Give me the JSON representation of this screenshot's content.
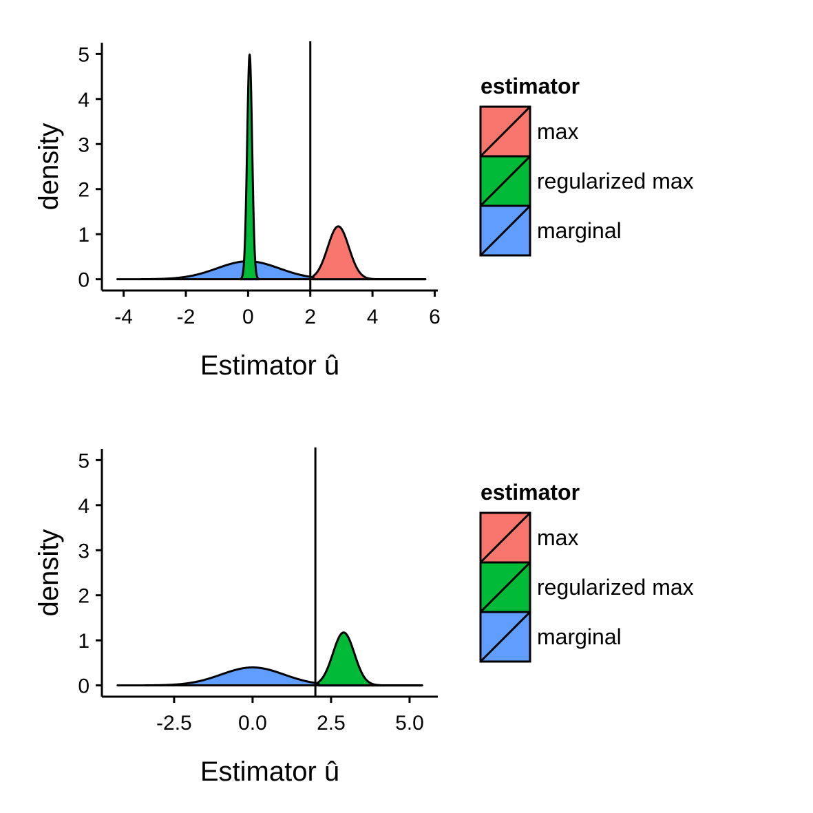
{
  "colors": {
    "max": "#F8766D",
    "regularized max": "#00BA38",
    "marginal": "#619CFF",
    "outline": "#000000"
  },
  "chart_data": [
    {
      "type": "area",
      "xlabel": "Estimator û",
      "ylabel": "density",
      "xlim": [
        -4.7,
        6.1
      ],
      "ylim": [
        -0.25,
        5.25
      ],
      "x_ticks": [
        -4,
        -2,
        0,
        2,
        4,
        6
      ],
      "x_tick_labels": [
        "-4",
        "-2",
        "0",
        "2",
        "4",
        "6"
      ],
      "y_ticks": [
        0,
        1,
        2,
        3,
        4,
        5
      ],
      "y_tick_labels": [
        "0",
        "1",
        "2",
        "3",
        "4",
        "5"
      ],
      "vline": 2,
      "series": [
        {
          "name": "marginal",
          "distribution": "normal",
          "mean": 0,
          "sd": 1,
          "x_range": [
            -4.2,
            5.7
          ]
        },
        {
          "name": "regularized max",
          "distribution": "normal",
          "mean": 0.05,
          "sd": 0.08,
          "x_range": [
            -0.25,
            0.35
          ]
        },
        {
          "name": "max",
          "distribution": "normal",
          "mean": 2.9,
          "sd": 0.34,
          "x_range": [
            2.1,
            5.7
          ]
        }
      ],
      "grid": false,
      "legend": {
        "title": "estimator",
        "position": "right",
        "entries": [
          "max",
          "regularized max",
          "marginal"
        ]
      }
    },
    {
      "type": "area",
      "xlabel": "Estimator û",
      "ylabel": "density",
      "xlim": [
        -4.8,
        5.9
      ],
      "ylim": [
        -0.25,
        5.25
      ],
      "x_ticks": [
        -2.5,
        0.0,
        2.5,
        5.0
      ],
      "x_tick_labels": [
        "-2.5",
        "0.0",
        "2.5",
        "5.0"
      ],
      "y_ticks": [
        0,
        1,
        2,
        3,
        4,
        5
      ],
      "y_tick_labels": [
        "0",
        "1",
        "2",
        "3",
        "4",
        "5"
      ],
      "vline": 2,
      "series": [
        {
          "name": "marginal",
          "distribution": "normal",
          "mean": 0,
          "sd": 1,
          "x_range": [
            -4.3,
            5.4
          ]
        },
        {
          "name": "max",
          "distribution": "normal",
          "mean": 2.9,
          "sd": 0.34,
          "x_range": [
            2.1,
            5.4
          ]
        },
        {
          "name": "regularized max",
          "distribution": "normal",
          "mean": 2.9,
          "sd": 0.34,
          "x_range": [
            2.1,
            5.4
          ]
        }
      ],
      "grid": false,
      "legend": {
        "title": "estimator",
        "position": "right",
        "entries": [
          "max",
          "regularized max",
          "marginal"
        ]
      }
    }
  ]
}
